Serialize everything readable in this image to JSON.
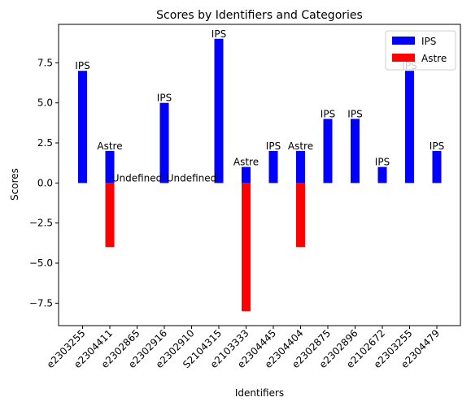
{
  "chart_data": {
    "type": "bar",
    "title": "Scores by Identifiers and Categories",
    "xlabel": "Identifiers",
    "ylabel": "Scores",
    "ylim": [
      -8.9,
      9.9
    ],
    "yticks": [
      -7.5,
      -5.0,
      -2.5,
      0.0,
      2.5,
      5.0,
      7.5
    ],
    "ytick_labels": [
      "−7.5",
      "−5.0",
      "−2.5",
      "0.0",
      "2.5",
      "5.0",
      "7.5"
    ],
    "categories": [
      "e2303255",
      "e2304411",
      "e2302865",
      "e2302916",
      "e2302910",
      "S2104315",
      "e2103333",
      "e2304445",
      "e2304404",
      "e2302875",
      "e2302896",
      "e2102672",
      "e2303255",
      "e2304479"
    ],
    "series": [
      {
        "name": "IPS",
        "color": "#0000ff"
      },
      {
        "name": "Astre",
        "color": "#ff0000"
      }
    ],
    "bars": [
      {
        "series": "IPS",
        "value": 7,
        "label": "IPS"
      },
      {
        "series": "IPS",
        "value": 2,
        "label": "Astre"
      },
      {
        "series": "Astre",
        "value": -4,
        "label": ""
      },
      {
        "series": null,
        "value": 0,
        "label": "Undefined"
      },
      {
        "series": "IPS",
        "value": 5,
        "label": "IPS"
      },
      {
        "series": null,
        "value": 0,
        "label": "Undefined"
      },
      {
        "series": "IPS",
        "value": 9,
        "label": "IPS"
      },
      {
        "series": "IPS",
        "value": 1,
        "label": "Astre"
      },
      {
        "series": "Astre",
        "value": -8,
        "label": ""
      },
      {
        "series": "IPS",
        "value": 2,
        "label": "IPS"
      },
      {
        "series": "IPS",
        "value": 2,
        "label": "Astre"
      },
      {
        "series": "Astre",
        "value": -4,
        "label": ""
      },
      {
        "series": "IPS",
        "value": 4,
        "label": "IPS"
      },
      {
        "series": "IPS",
        "value": 4,
        "label": "IPS"
      },
      {
        "series": "IPS",
        "value": 1,
        "label": "IPS"
      },
      {
        "series": "IPS",
        "value": 7,
        "label": "IPS"
      },
      {
        "series": "IPS",
        "value": 2,
        "label": "IPS"
      }
    ],
    "bar_category_index": [
      0,
      1,
      1,
      2,
      3,
      4,
      5,
      6,
      6,
      7,
      8,
      8,
      9,
      10,
      11,
      12,
      13
    ],
    "legend": {
      "placement": "top-right",
      "entries": [
        "IPS",
        "Astre"
      ]
    },
    "grid": false
  }
}
